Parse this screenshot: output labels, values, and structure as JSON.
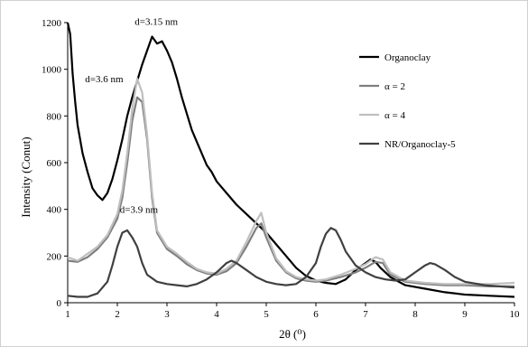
{
  "chart_data": {
    "type": "line",
    "xlabel": "2θ (⁰)",
    "ylabel": "Intensity (Conut)",
    "xlim": [
      1,
      10
    ],
    "ylim": [
      0,
      1200
    ],
    "xticks": [
      1,
      2,
      3,
      4,
      5,
      6,
      7,
      8,
      9,
      10
    ],
    "yticks": [
      0,
      200,
      400,
      600,
      800,
      1000,
      1200
    ],
    "grid": false,
    "legend_position": "right",
    "annotations": [
      {
        "text": "d=3.15 nm",
        "x": 2.35,
        "y": 1190
      },
      {
        "text": "d=3.6 nm",
        "x": 1.35,
        "y": 945
      },
      {
        "text": "d=3.9 nm",
        "x": 2.05,
        "y": 385
      }
    ],
    "series": [
      {
        "name": "Organoclay",
        "color": "#000000",
        "width": 2.2,
        "points": [
          [
            1.0,
            1200
          ],
          [
            1.05,
            1150
          ],
          [
            1.1,
            980
          ],
          [
            1.15,
            860
          ],
          [
            1.2,
            760
          ],
          [
            1.3,
            640
          ],
          [
            1.4,
            560
          ],
          [
            1.5,
            490
          ],
          [
            1.6,
            460
          ],
          [
            1.7,
            440
          ],
          [
            1.8,
            470
          ],
          [
            1.9,
            530
          ],
          [
            2.0,
            610
          ],
          [
            2.1,
            700
          ],
          [
            2.2,
            800
          ],
          [
            2.3,
            880
          ],
          [
            2.4,
            950
          ],
          [
            2.5,
            1020
          ],
          [
            2.6,
            1080
          ],
          [
            2.7,
            1140
          ],
          [
            2.8,
            1110
          ],
          [
            2.9,
            1120
          ],
          [
            3.0,
            1080
          ],
          [
            3.1,
            1030
          ],
          [
            3.2,
            960
          ],
          [
            3.3,
            880
          ],
          [
            3.4,
            810
          ],
          [
            3.5,
            740
          ],
          [
            3.6,
            690
          ],
          [
            3.7,
            640
          ],
          [
            3.8,
            590
          ],
          [
            3.9,
            560
          ],
          [
            4.0,
            520
          ],
          [
            4.2,
            470
          ],
          [
            4.4,
            420
          ],
          [
            4.6,
            380
          ],
          [
            4.8,
            340
          ],
          [
            5.0,
            300
          ],
          [
            5.2,
            250
          ],
          [
            5.4,
            200
          ],
          [
            5.6,
            150
          ],
          [
            5.8,
            115
          ],
          [
            6.0,
            95
          ],
          [
            6.2,
            85
          ],
          [
            6.4,
            80
          ],
          [
            6.6,
            100
          ],
          [
            6.8,
            140
          ],
          [
            7.0,
            170
          ],
          [
            7.1,
            185
          ],
          [
            7.2,
            175
          ],
          [
            7.3,
            150
          ],
          [
            7.5,
            110
          ],
          [
            7.8,
            75
          ],
          [
            8.2,
            60
          ],
          [
            8.6,
            45
          ],
          [
            9.0,
            35
          ],
          [
            9.5,
            30
          ],
          [
            10.0,
            25
          ]
        ]
      },
      {
        "name": "α = 2",
        "color": "#7f7f7f",
        "width": 2.2,
        "points": [
          [
            1.0,
            180
          ],
          [
            1.2,
            175
          ],
          [
            1.4,
            195
          ],
          [
            1.6,
            230
          ],
          [
            1.8,
            280
          ],
          [
            2.0,
            360
          ],
          [
            2.1,
            450
          ],
          [
            2.2,
            600
          ],
          [
            2.3,
            780
          ],
          [
            2.4,
            880
          ],
          [
            2.5,
            860
          ],
          [
            2.6,
            700
          ],
          [
            2.7,
            450
          ],
          [
            2.8,
            300
          ],
          [
            3.0,
            230
          ],
          [
            3.2,
            200
          ],
          [
            3.4,
            165
          ],
          [
            3.6,
            140
          ],
          [
            3.8,
            125
          ],
          [
            4.0,
            120
          ],
          [
            4.2,
            135
          ],
          [
            4.4,
            170
          ],
          [
            4.6,
            240
          ],
          [
            4.8,
            320
          ],
          [
            4.9,
            340
          ],
          [
            5.0,
            280
          ],
          [
            5.2,
            180
          ],
          [
            5.4,
            130
          ],
          [
            5.6,
            105
          ],
          [
            5.8,
            95
          ],
          [
            6.0,
            90
          ],
          [
            6.2,
            95
          ],
          [
            6.5,
            110
          ],
          [
            6.8,
            130
          ],
          [
            7.0,
            150
          ],
          [
            7.2,
            175
          ],
          [
            7.35,
            170
          ],
          [
            7.5,
            120
          ],
          [
            7.8,
            90
          ],
          [
            8.2,
            80
          ],
          [
            8.6,
            75
          ],
          [
            9.0,
            75
          ],
          [
            9.5,
            70
          ],
          [
            10.0,
            70
          ]
        ]
      },
      {
        "name": "α = 4",
        "color": "#bfbfbf",
        "width": 2.2,
        "points": [
          [
            1.0,
            195
          ],
          [
            1.2,
            180
          ],
          [
            1.4,
            210
          ],
          [
            1.6,
            240
          ],
          [
            1.8,
            290
          ],
          [
            2.0,
            380
          ],
          [
            2.1,
            480
          ],
          [
            2.2,
            640
          ],
          [
            2.3,
            830
          ],
          [
            2.4,
            960
          ],
          [
            2.5,
            900
          ],
          [
            2.6,
            720
          ],
          [
            2.7,
            470
          ],
          [
            2.8,
            310
          ],
          [
            3.0,
            240
          ],
          [
            3.2,
            210
          ],
          [
            3.4,
            175
          ],
          [
            3.6,
            145
          ],
          [
            3.8,
            130
          ],
          [
            4.0,
            125
          ],
          [
            4.2,
            145
          ],
          [
            4.4,
            180
          ],
          [
            4.6,
            260
          ],
          [
            4.8,
            350
          ],
          [
            4.9,
            385
          ],
          [
            5.0,
            300
          ],
          [
            5.2,
            190
          ],
          [
            5.4,
            135
          ],
          [
            5.6,
            110
          ],
          [
            5.8,
            100
          ],
          [
            6.0,
            95
          ],
          [
            6.2,
            100
          ],
          [
            6.5,
            120
          ],
          [
            6.8,
            145
          ],
          [
            7.0,
            165
          ],
          [
            7.2,
            195
          ],
          [
            7.35,
            185
          ],
          [
            7.5,
            130
          ],
          [
            7.8,
            95
          ],
          [
            8.2,
            85
          ],
          [
            8.6,
            80
          ],
          [
            9.0,
            80
          ],
          [
            9.5,
            80
          ],
          [
            10.0,
            85
          ]
        ]
      },
      {
        "name": "NR/Organoclay-5",
        "color": "#404040",
        "width": 2.2,
        "points": [
          [
            1.0,
            30
          ],
          [
            1.2,
            25
          ],
          [
            1.4,
            25
          ],
          [
            1.6,
            40
          ],
          [
            1.8,
            90
          ],
          [
            1.9,
            160
          ],
          [
            2.0,
            240
          ],
          [
            2.1,
            300
          ],
          [
            2.2,
            310
          ],
          [
            2.3,
            280
          ],
          [
            2.4,
            240
          ],
          [
            2.5,
            170
          ],
          [
            2.6,
            120
          ],
          [
            2.8,
            90
          ],
          [
            3.0,
            80
          ],
          [
            3.2,
            75
          ],
          [
            3.4,
            70
          ],
          [
            3.6,
            80
          ],
          [
            3.8,
            100
          ],
          [
            4.0,
            130
          ],
          [
            4.2,
            170
          ],
          [
            4.3,
            180
          ],
          [
            4.4,
            170
          ],
          [
            4.6,
            140
          ],
          [
            4.8,
            110
          ],
          [
            5.0,
            90
          ],
          [
            5.2,
            80
          ],
          [
            5.4,
            75
          ],
          [
            5.6,
            80
          ],
          [
            5.8,
            110
          ],
          [
            6.0,
            170
          ],
          [
            6.1,
            240
          ],
          [
            6.2,
            295
          ],
          [
            6.3,
            320
          ],
          [
            6.4,
            310
          ],
          [
            6.5,
            270
          ],
          [
            6.6,
            220
          ],
          [
            6.8,
            160
          ],
          [
            7.0,
            130
          ],
          [
            7.2,
            110
          ],
          [
            7.4,
            100
          ],
          [
            7.6,
            95
          ],
          [
            7.8,
            100
          ],
          [
            8.0,
            130
          ],
          [
            8.2,
            160
          ],
          [
            8.3,
            170
          ],
          [
            8.4,
            165
          ],
          [
            8.6,
            140
          ],
          [
            8.8,
            110
          ],
          [
            9.0,
            90
          ],
          [
            9.4,
            75
          ],
          [
            10.0,
            65
          ]
        ]
      }
    ]
  }
}
